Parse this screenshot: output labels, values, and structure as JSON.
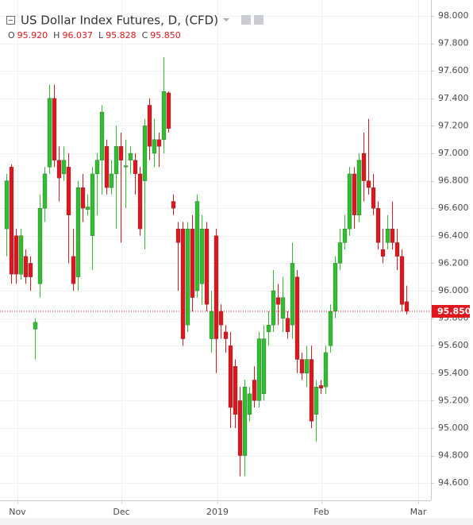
{
  "chart_data": {
    "type": "candlestick",
    "title": "US Dollar Index Futures, D, (CFD)",
    "ohlc_legend": [
      {
        "key": "O",
        "value": 95.92,
        "label": "95.920"
      },
      {
        "key": "H",
        "value": 96.037,
        "label": "96.037"
      },
      {
        "key": "L",
        "value": 95.828,
        "label": "95.828"
      },
      {
        "key": "C",
        "value": 95.85,
        "label": "95.850"
      }
    ],
    "colors": {
      "up": "#2fbf2f",
      "down": "#e0161e"
    },
    "open": [
      96.45,
      96.9,
      96.4,
      96.12,
      96.25,
      96.2,
      95.72,
      96.05,
      96.6,
      96.9,
      97.4,
      96.95,
      96.85,
      96.9,
      96.25,
      96.1,
      96.75,
      96.59,
      96.4,
      96.85,
      96.95,
      97.05,
      96.75,
      96.85,
      97.05,
      96.9,
      96.95,
      96.95,
      96.85,
      96.8,
      97.35,
      97.0,
      97.1,
      97.1,
      97.44,
      96.65,
      96.45,
      96.45,
      95.75,
      96.45,
      96.0,
      96.05,
      96.45,
      95.65,
      96.4,
      95.85,
      95.7,
      95.6,
      95.45,
      95.2,
      94.8,
      95.1,
      95.35,
      95.2,
      95.25,
      95.7,
      95.75,
      95.95,
      95.8,
      95.8,
      95.75,
      96.1,
      95.5,
      95.4,
      95.5,
      95.1,
      95.31,
      95.3,
      95.6,
      95.85,
      96.2,
      96.35,
      96.45,
      96.85,
      96.55,
      97.0,
      96.8,
      96.75,
      96.6,
      96.3,
      96.35,
      96.45,
      96.35,
      96.25,
      95.92
    ],
    "high": [
      96.85,
      96.92,
      96.45,
      96.45,
      96.3,
      96.25,
      95.8,
      96.7,
      96.9,
      97.5,
      97.5,
      97.05,
      97.05,
      97.0,
      96.45,
      96.8,
      96.85,
      96.7,
      96.9,
      97.0,
      97.35,
      97.1,
      96.95,
      97.2,
      97.15,
      97.1,
      97.05,
      97.0,
      96.9,
      97.25,
      97.4,
      97.25,
      97.15,
      97.7,
      97.45,
      96.7,
      96.5,
      96.5,
      96.5,
      96.55,
      96.7,
      96.55,
      96.5,
      96.0,
      96.45,
      95.9,
      95.75,
      95.7,
      95.5,
      95.3,
      95.35,
      95.3,
      95.45,
      95.7,
      95.75,
      95.85,
      96.15,
      96.05,
      96.1,
      95.85,
      96.35,
      96.15,
      95.55,
      95.6,
      95.6,
      95.35,
      95.35,
      95.6,
      95.9,
      96.25,
      96.45,
      96.55,
      96.9,
      96.9,
      97.0,
      97.15,
      97.25,
      96.85,
      96.65,
      96.45,
      96.55,
      96.65,
      96.45,
      96.3,
      96.037
    ],
    "low": [
      96.25,
      96.05,
      96.05,
      96.08,
      96.05,
      96.0,
      95.5,
      95.95,
      96.5,
      96.85,
      96.9,
      96.65,
      96.8,
      96.2,
      96.0,
      96.0,
      96.5,
      96.55,
      96.15,
      96.55,
      96.7,
      96.7,
      96.7,
      96.45,
      96.35,
      96.6,
      96.85,
      96.7,
      96.4,
      96.3,
      96.95,
      96.9,
      96.9,
      97.0,
      97.15,
      96.55,
      96.0,
      95.6,
      95.7,
      95.85,
      95.95,
      95.9,
      95.85,
      95.55,
      95.4,
      95.65,
      95.55,
      95.0,
      95.0,
      94.65,
      94.65,
      95.05,
      95.15,
      95.15,
      95.2,
      95.6,
      95.7,
      95.75,
      95.7,
      95.65,
      95.65,
      95.4,
      95.35,
      95.3,
      95.0,
      94.9,
      95.25,
      95.25,
      95.55,
      95.8,
      96.15,
      96.3,
      96.4,
      96.45,
      96.5,
      96.65,
      96.7,
      96.55,
      96.3,
      96.2,
      96.3,
      96.3,
      96.15,
      95.85,
      95.828
    ],
    "close": [
      96.8,
      96.12,
      96.12,
      96.4,
      96.1,
      96.1,
      95.77,
      96.6,
      96.85,
      97.4,
      96.95,
      96.82,
      96.95,
      96.55,
      96.05,
      96.75,
      96.6,
      96.61,
      96.85,
      96.95,
      97.3,
      96.75,
      96.85,
      97.05,
      96.95,
      96.91,
      97.0,
      96.85,
      96.45,
      97.2,
      97.05,
      97.1,
      97.05,
      97.45,
      97.18,
      96.6,
      96.35,
      95.65,
      96.45,
      95.95,
      96.65,
      96.45,
      95.9,
      95.85,
      95.65,
      95.75,
      95.65,
      95.15,
      95.1,
      94.8,
      95.3,
      95.25,
      95.2,
      95.65,
      95.65,
      95.75,
      96.0,
      95.9,
      95.95,
      95.7,
      96.2,
      95.5,
      95.4,
      95.5,
      95.05,
      95.3,
      95.29,
      95.55,
      95.85,
      96.2,
      96.35,
      96.45,
      96.85,
      96.55,
      96.95,
      96.8,
      96.75,
      96.6,
      96.35,
      96.25,
      96.45,
      96.35,
      96.25,
      95.9,
      95.85
    ],
    "current_price": {
      "value": 95.85,
      "label": "95.850"
    },
    "xlim": [
      -1.33,
      89.17
    ],
    "xticks": [
      {
        "value": 2.33,
        "label": "Nov"
      },
      {
        "value": 24.17,
        "label": "Dec"
      },
      {
        "value": 44.33,
        "label": "2019"
      },
      {
        "value": 66.17,
        "label": "Feb"
      },
      {
        "value": 86.5,
        "label": "Mar"
      }
    ],
    "ylim": [
      94.474,
      98.0
    ],
    "yticks": [
      {
        "value": 94.6,
        "label": "94.600"
      },
      {
        "value": 94.8,
        "label": "94.800"
      },
      {
        "value": 95.0,
        "label": "95.000"
      },
      {
        "value": 95.2,
        "label": "95.200"
      },
      {
        "value": 95.4,
        "label": "95.400"
      },
      {
        "value": 95.6,
        "label": "95.600"
      },
      {
        "value": 95.8,
        "label": "95.800"
      },
      {
        "value": 96.0,
        "label": "96.000"
      },
      {
        "value": 96.2,
        "label": "96.200"
      },
      {
        "value": 96.4,
        "label": "96.400"
      },
      {
        "value": 96.6,
        "label": "96.600"
      },
      {
        "value": 96.8,
        "label": "96.800"
      },
      {
        "value": 97.0,
        "label": "97.000"
      },
      {
        "value": 97.2,
        "label": "97.200"
      },
      {
        "value": 97.4,
        "label": "97.400"
      },
      {
        "value": 97.6,
        "label": "97.600"
      },
      {
        "value": 97.8,
        "label": "97.800"
      },
      {
        "value": 98.0,
        "label": "98.000"
      }
    ],
    "grid": true
  }
}
